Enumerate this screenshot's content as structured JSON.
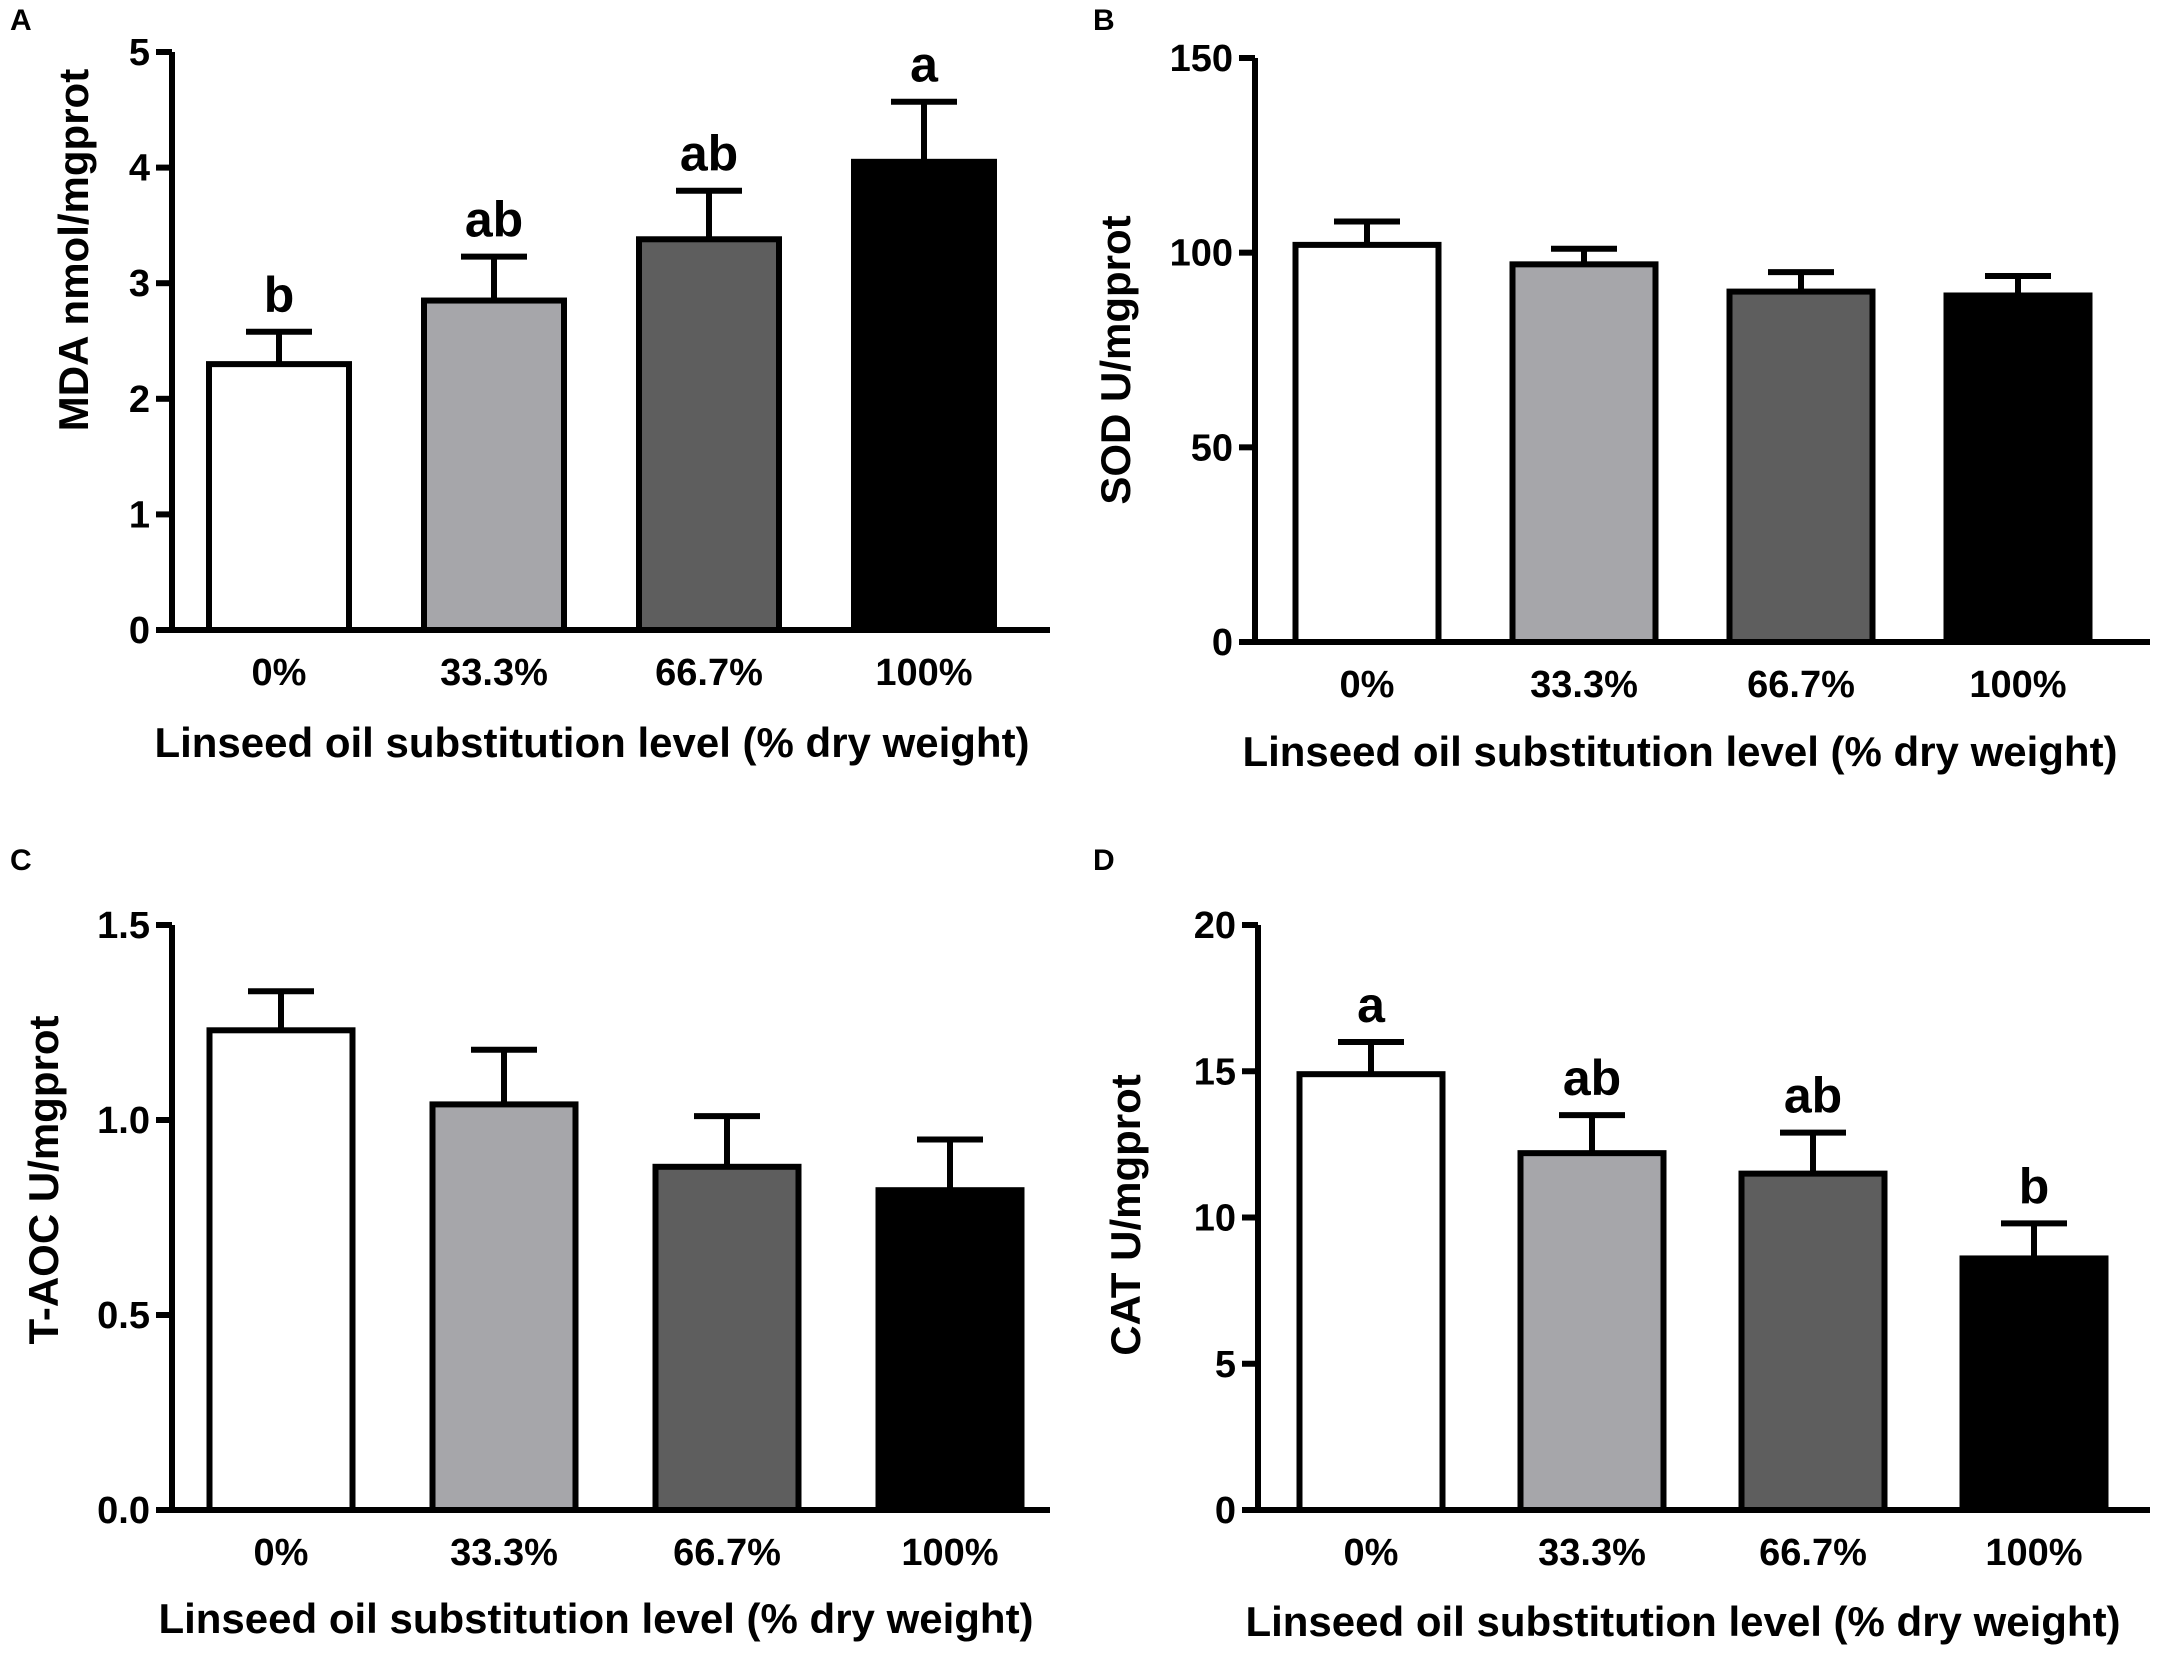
{
  "figure": {
    "categories": [
      "0%",
      "33.3%",
      "66.7%",
      "100%"
    ],
    "bar_colors": [
      "#ffffff",
      "#a6a6aa",
      "#5e5e5e",
      "#000000"
    ]
  },
  "chart_data": [
    {
      "id": "A",
      "panel_label": "A",
      "type": "bar",
      "categories": [
        "0%",
        "33.3%",
        "66.7%",
        "100%"
      ],
      "values": [
        2.3,
        2.85,
        3.38,
        4.05
      ],
      "error": [
        0.28,
        0.38,
        0.42,
        0.52
      ],
      "significance": [
        "b",
        "ab",
        "ab",
        "a"
      ],
      "ylabel": "MDA nmol/mgprot",
      "xlabel": "Linseed oil substitution level (% dry weight)",
      "ylim": [
        0,
        5
      ],
      "yticks": [
        0,
        1,
        2,
        3,
        4,
        5
      ],
      "ytick_labels": [
        "0",
        "1",
        "2",
        "3",
        "4",
        "5"
      ]
    },
    {
      "id": "B",
      "panel_label": "B",
      "type": "bar",
      "categories": [
        "0%",
        "33.3%",
        "66.7%",
        "100%"
      ],
      "values": [
        102,
        97,
        90,
        89
      ],
      "error": [
        6,
        4,
        5,
        5
      ],
      "significance": [
        "",
        "",
        "",
        ""
      ],
      "ylabel": "SOD U/mgprot",
      "xlabel": "Linseed oil substitution level (% dry weight)",
      "ylim": [
        0,
        150
      ],
      "yticks": [
        0,
        50,
        100,
        150
      ],
      "ytick_labels": [
        "0",
        "50",
        "100",
        "150"
      ]
    },
    {
      "id": "C",
      "panel_label": "C",
      "type": "bar",
      "categories": [
        "0%",
        "33.3%",
        "66.7%",
        "100%"
      ],
      "values": [
        1.23,
        1.04,
        0.88,
        0.82
      ],
      "error": [
        0.1,
        0.14,
        0.13,
        0.13
      ],
      "significance": [
        "",
        "",
        "",
        ""
      ],
      "ylabel": "T-AOC U/mgprot",
      "xlabel": "Linseed oil substitution level (% dry weight)",
      "ylim": [
        0,
        1.5
      ],
      "yticks": [
        0,
        0.5,
        1.0,
        1.5
      ],
      "ytick_labels": [
        "0.0",
        "0.5",
        "1.0",
        "1.5"
      ]
    },
    {
      "id": "D",
      "panel_label": "D",
      "type": "bar",
      "categories": [
        "0%",
        "33.3%",
        "66.7%",
        "100%"
      ],
      "values": [
        14.9,
        12.2,
        11.5,
        8.6
      ],
      "error": [
        1.1,
        1.3,
        1.4,
        1.2
      ],
      "significance": [
        "a",
        "ab",
        "ab",
        "b"
      ],
      "ylabel": "CAT U/mgprot",
      "xlabel": "Linseed oil substitution level (% dry weight)",
      "ylim": [
        0,
        20
      ],
      "yticks": [
        0,
        5,
        10,
        15,
        20
      ],
      "ytick_labels": [
        "0",
        "5",
        "10",
        "15",
        "20"
      ]
    }
  ]
}
